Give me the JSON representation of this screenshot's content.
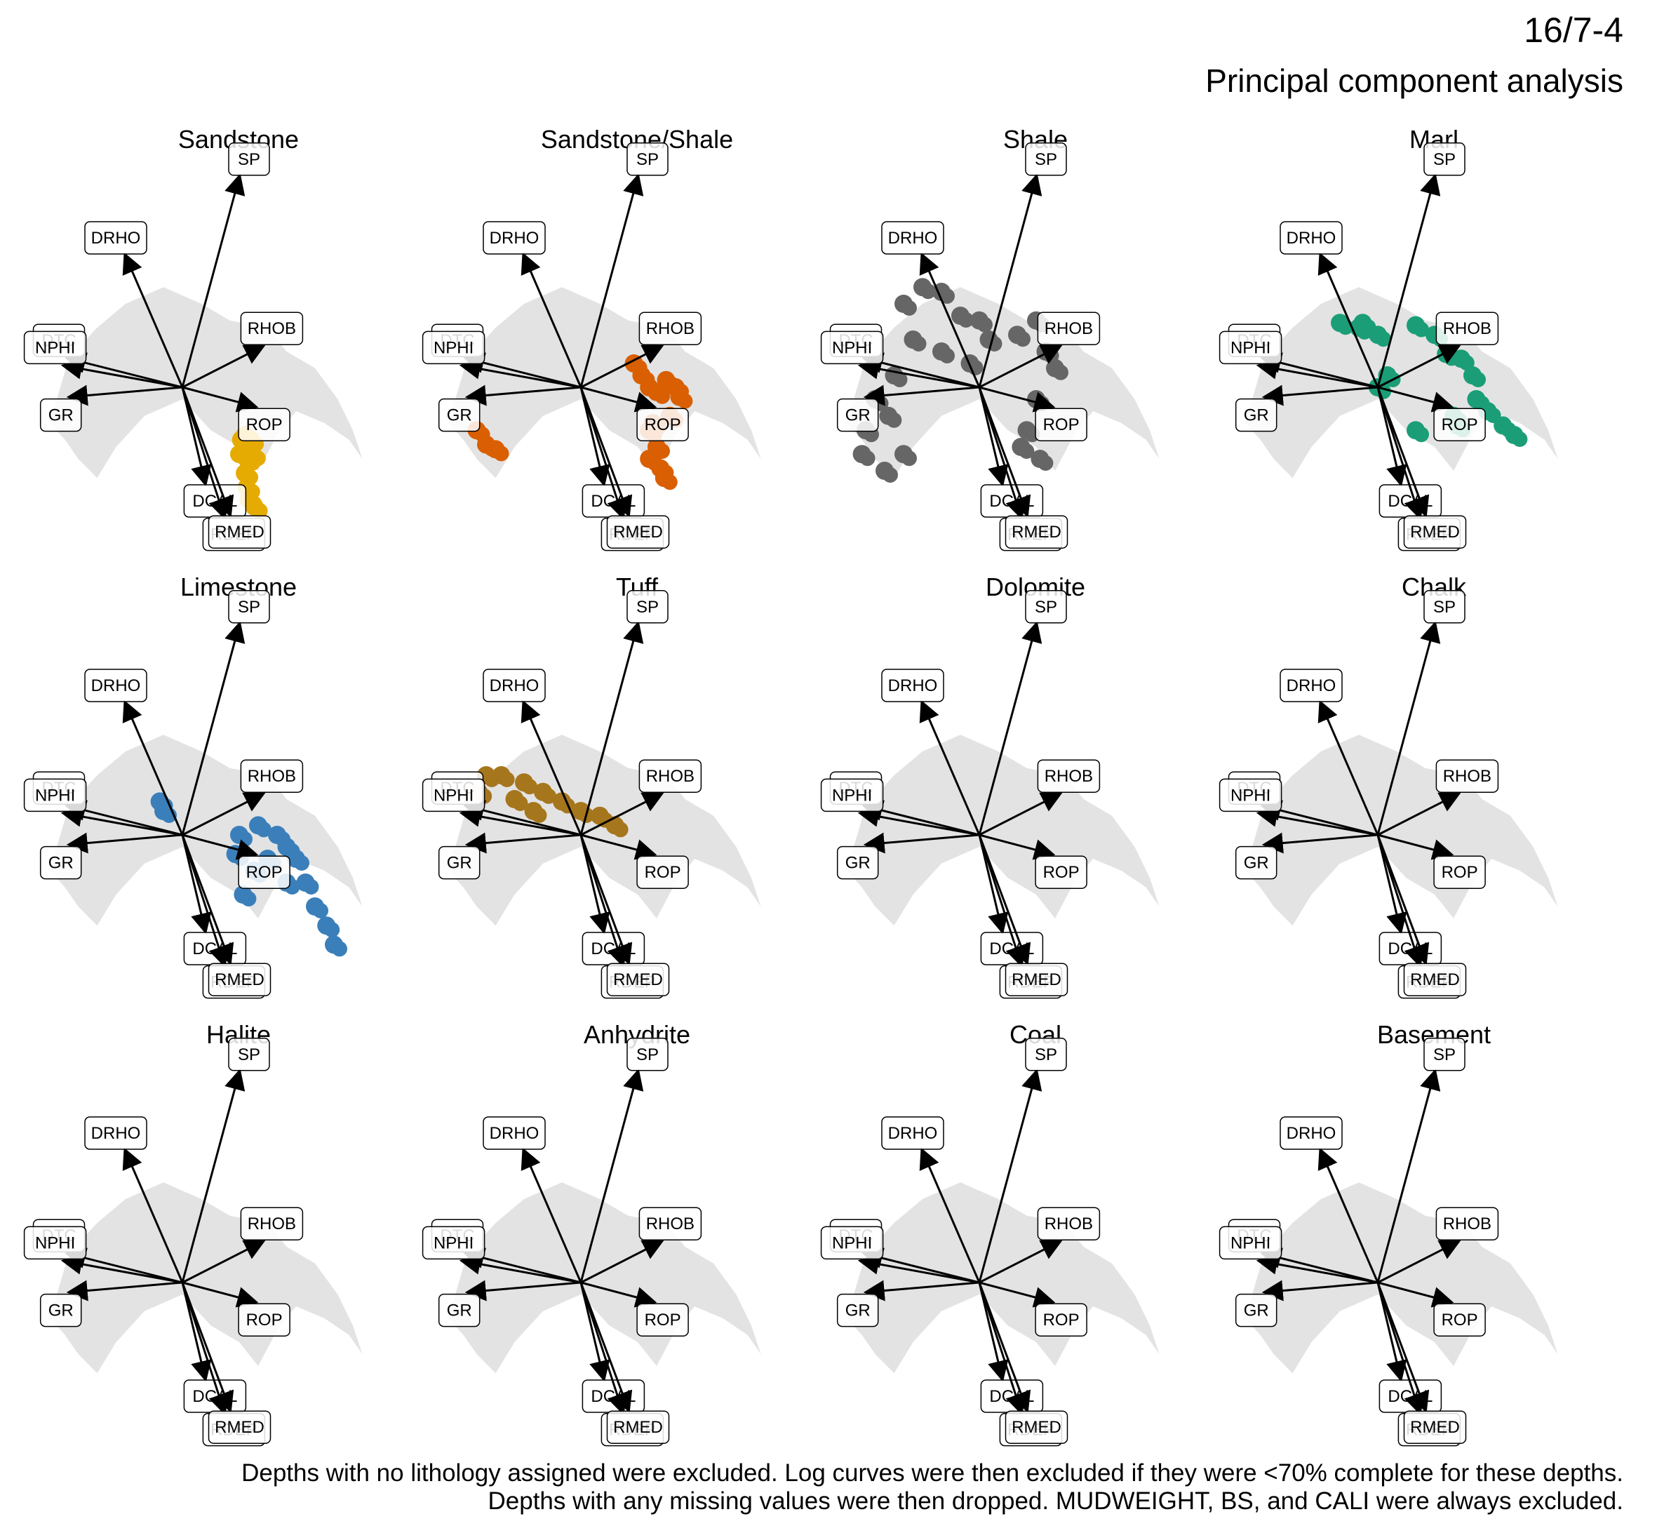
{
  "well": "16/7-4",
  "title": "Principal component analysis",
  "caption": [
    "Depths with no lithology assigned were excluded. Log curves were then excluded if they were <70% complete for these depths.",
    "Depths with any missing values were then dropped. MUDWEIGHT, BS, and CALI were always excluded."
  ],
  "chart_data": {
    "type": "scatter",
    "description_kind": "PCA biplot faceted by lithology",
    "background_color": "#e3e3e3",
    "loadings": [
      {
        "name": "SP",
        "x": 0.3,
        "y": 0.88
      },
      {
        "name": "DRHO",
        "x": -0.3,
        "y": 0.55
      },
      {
        "name": "DTC",
        "x": -0.6,
        "y": 0.12
      },
      {
        "name": "RHOB",
        "x": 0.42,
        "y": 0.17
      },
      {
        "name": "NPHI",
        "x": -0.62,
        "y": 0.09
      },
      {
        "name": "ROP",
        "x": 0.38,
        "y": -0.08
      },
      {
        "name": "GR",
        "x": -0.59,
        "y": -0.04
      },
      {
        "name": "DCAL",
        "x": 0.12,
        "y": -0.4
      },
      {
        "name": "RDEP",
        "x": 0.22,
        "y": -0.54
      },
      {
        "name": "RMED",
        "x": 0.25,
        "y": -0.53
      }
    ],
    "panels": [
      {
        "label": "Sandstone",
        "color": "#e6ab02",
        "points": [
          [
            0.31,
            -0.22
          ],
          [
            0.33,
            -0.2
          ],
          [
            0.36,
            -0.22
          ],
          [
            0.37,
            -0.28
          ],
          [
            0.34,
            -0.3
          ],
          [
            0.33,
            -0.36
          ],
          [
            0.34,
            -0.42
          ],
          [
            0.35,
            -0.47
          ],
          [
            0.38,
            -0.5
          ],
          [
            0.33,
            -0.25
          ],
          [
            0.3,
            -0.28
          ],
          [
            0.34,
            -0.26
          ]
        ]
      },
      {
        "label": "Sandstone/Shale",
        "color": "#d95f02",
        "points": [
          [
            0.28,
            0.1
          ],
          [
            0.32,
            0.05
          ],
          [
            0.36,
            0.0
          ],
          [
            0.4,
            -0.02
          ],
          [
            0.45,
            0.03
          ],
          [
            0.5,
            0.0
          ],
          [
            0.52,
            -0.04
          ],
          [
            0.38,
            -0.15
          ],
          [
            0.4,
            -0.25
          ],
          [
            0.36,
            -0.3
          ],
          [
            0.42,
            -0.34
          ],
          [
            0.44,
            -0.38
          ],
          [
            0.47,
            -0.12
          ],
          [
            0.36,
            -0.18
          ],
          [
            -0.55,
            -0.18
          ],
          [
            -0.5,
            -0.24
          ],
          [
            -0.45,
            -0.26
          ]
        ]
      },
      {
        "label": "Shale",
        "color": "#666666",
        "points": [
          [
            -0.4,
            0.35
          ],
          [
            -0.3,
            0.42
          ],
          [
            -0.2,
            0.4
          ],
          [
            -0.1,
            0.3
          ],
          [
            0.0,
            0.28
          ],
          [
            0.05,
            0.2
          ],
          [
            -0.05,
            0.1
          ],
          [
            -0.2,
            0.15
          ],
          [
            -0.35,
            0.2
          ],
          [
            -0.45,
            0.05
          ],
          [
            -0.55,
            -0.05
          ],
          [
            -0.6,
            -0.18
          ],
          [
            -0.62,
            -0.28
          ],
          [
            -0.5,
            -0.35
          ],
          [
            -0.4,
            -0.28
          ],
          [
            -0.48,
            -0.12
          ],
          [
            0.2,
            0.22
          ],
          [
            0.3,
            0.28
          ],
          [
            0.35,
            0.15
          ],
          [
            0.4,
            0.08
          ],
          [
            0.3,
            -0.05
          ],
          [
            0.25,
            -0.18
          ],
          [
            0.32,
            -0.3
          ],
          [
            0.22,
            -0.25
          ]
        ]
      },
      {
        "label": "Marl",
        "color": "#1b9e77",
        "points": [
          [
            -0.2,
            0.27
          ],
          [
            -0.08,
            0.27
          ],
          [
            0.0,
            0.22
          ],
          [
            -0.1,
            0.25
          ],
          [
            0.2,
            0.26
          ],
          [
            0.3,
            0.22
          ],
          [
            0.36,
            0.14
          ],
          [
            0.44,
            0.12
          ],
          [
            0.5,
            0.05
          ],
          [
            0.52,
            -0.05
          ],
          [
            0.58,
            -0.1
          ],
          [
            0.66,
            -0.16
          ],
          [
            0.72,
            -0.2
          ],
          [
            0.4,
            -0.12
          ],
          [
            0.42,
            -0.16
          ],
          [
            0.05,
            0.05
          ],
          [
            0.0,
            0.0
          ],
          [
            0.2,
            -0.18
          ]
        ]
      },
      {
        "label": "Limestone",
        "color": "#3a7fba",
        "points": [
          [
            -0.12,
            0.14
          ],
          [
            -0.1,
            0.1
          ],
          [
            0.3,
            0.0
          ],
          [
            0.4,
            0.04
          ],
          [
            0.5,
            0.0
          ],
          [
            0.55,
            -0.05
          ],
          [
            0.6,
            -0.1
          ],
          [
            0.45,
            -0.1
          ],
          [
            0.38,
            -0.15
          ],
          [
            0.32,
            -0.25
          ],
          [
            0.65,
            -0.2
          ],
          [
            0.7,
            -0.3
          ],
          [
            0.76,
            -0.38
          ],
          [
            0.8,
            -0.46
          ],
          [
            0.55,
            -0.2
          ],
          [
            0.28,
            -0.08
          ]
        ]
      },
      {
        "label": "Tuff",
        "color": "#a6761d",
        "points": [
          [
            -0.54,
            0.18
          ],
          [
            -0.5,
            0.25
          ],
          [
            -0.42,
            0.25
          ],
          [
            -0.3,
            0.22
          ],
          [
            -0.2,
            0.18
          ],
          [
            -0.1,
            0.14
          ],
          [
            0.0,
            0.1
          ],
          [
            0.1,
            0.08
          ],
          [
            0.18,
            0.04
          ],
          [
            -0.35,
            0.15
          ],
          [
            -0.25,
            0.1
          ]
        ]
      },
      {
        "label": "Dolomite",
        "color": "#7570b3",
        "points": []
      },
      {
        "label": "Chalk",
        "color": "#e7298a",
        "points": []
      },
      {
        "label": "Halite",
        "color": "#66a61e",
        "points": []
      },
      {
        "label": "Anhydrite",
        "color": "#e6ab02",
        "points": []
      },
      {
        "label": "Coal",
        "color": "#000000",
        "points": []
      },
      {
        "label": "Basement",
        "color": "#a6cee3",
        "points": []
      }
    ]
  }
}
